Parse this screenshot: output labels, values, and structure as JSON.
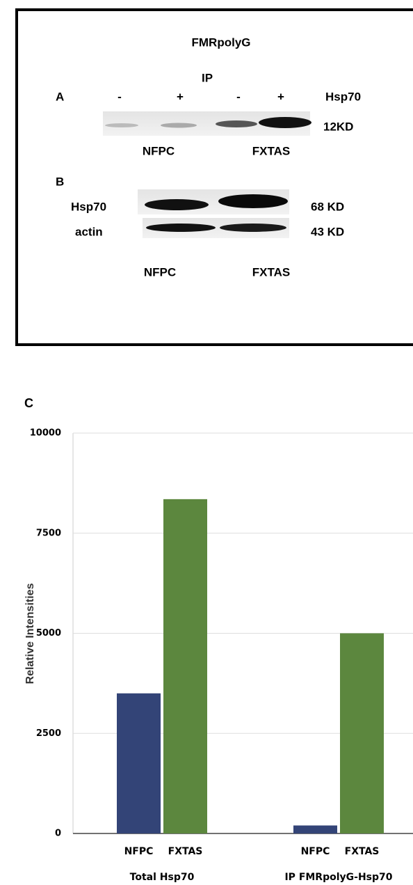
{
  "panel_a": {
    "label": "A",
    "title": "FMRpolyG",
    "ip": "IP",
    "signs": [
      "-",
      "+",
      "-",
      "+"
    ],
    "marker": "Hsp70",
    "size": "12KD",
    "groups": [
      "NFPC",
      "FXTAS"
    ]
  },
  "panel_b": {
    "label": "B",
    "rows": [
      {
        "label": "Hsp70",
        "size": "68 KD"
      },
      {
        "label": "actin",
        "size": "43 KD"
      }
    ],
    "groups": [
      "NFPC",
      "FXTAS"
    ]
  },
  "panel_c_label": "C",
  "chart_data": {
    "type": "bar",
    "ylabel": "Relative Intensities",
    "categories": [
      "Total Hsp70",
      "IP FMRpolyG-Hsp70"
    ],
    "series": [
      {
        "name": "NFPC",
        "color": "#334477",
        "values": [
          3500,
          200
        ]
      },
      {
        "name": "FXTAS",
        "color": "#5c873e",
        "values": [
          8350,
          5000
        ]
      }
    ],
    "ylim": [
      0,
      10000
    ],
    "yticks": [
      0,
      2500,
      5000,
      7500,
      10000
    ],
    "grid": true
  }
}
